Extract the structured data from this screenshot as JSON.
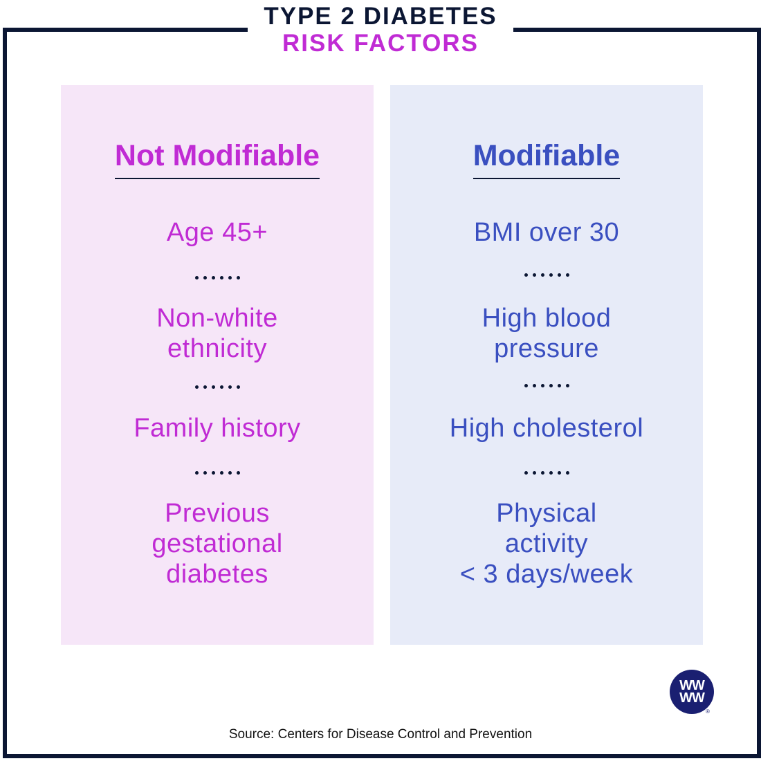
{
  "title": {
    "line1": "TYPE 2 DIABETES",
    "line2": "RISK FACTORS"
  },
  "colors": {
    "navy": "#0b1633",
    "magenta": "#c02bd4",
    "blue": "#3a4fc0",
    "left_bg": "#f6e6f8",
    "right_bg": "#e7ebf8",
    "logo": "#1a1f71"
  },
  "columns": {
    "left": {
      "heading": "Not Modifiable",
      "factors": [
        {
          "lines": [
            "Age 45+"
          ]
        },
        {
          "lines": [
            "Non-white",
            "ethnicity"
          ]
        },
        {
          "lines": [
            "Family history"
          ]
        },
        {
          "lines": [
            "Previous",
            "gestational",
            "diabetes"
          ]
        }
      ]
    },
    "right": {
      "heading": "Modifiable",
      "factors": [
        {
          "lines": [
            "BMI over 30"
          ]
        },
        {
          "lines": [
            "High blood",
            "pressure"
          ]
        },
        {
          "lines": [
            "High cholesterol"
          ]
        },
        {
          "lines": [
            "Physical",
            "activity",
            "< 3 days/week"
          ]
        }
      ]
    }
  },
  "logo": {
    "text_top": "WW",
    "text_bottom": "WW",
    "icon": "ww-logo-icon",
    "registered": "®"
  },
  "source": "Source: Centers for Disease Control and Prevention"
}
